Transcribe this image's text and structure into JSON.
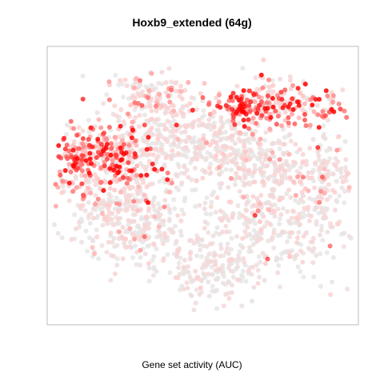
{
  "chart_data": {
    "type": "scatter",
    "title": "Hoxb9_extended (64g)",
    "legend_label": "Gene set activity (AUC)",
    "xlabel": "",
    "ylabel": "",
    "axes_visible": false,
    "grid": false,
    "xlim": [
      0,
      100
    ],
    "ylim": [
      0,
      100
    ],
    "color_scale": {
      "low": "#e6e6e6",
      "high": "#ff0000"
    },
    "clusters": [
      {
        "name": "top-center",
        "cx": 34,
        "cy": 81,
        "sx": 8,
        "sy": 5,
        "n": 160,
        "mean_activity": 0.3,
        "spread": 0.25
      },
      {
        "name": "top-right",
        "cx": 74,
        "cy": 80,
        "sx": 11,
        "sy": 5,
        "n": 230,
        "mean_activity": 0.55,
        "spread": 0.3
      },
      {
        "name": "top-right-hotspot",
        "cx": 62,
        "cy": 78,
        "sx": 2.5,
        "sy": 2,
        "n": 30,
        "mean_activity": 0.9,
        "spread": 0.1
      },
      {
        "name": "left-upper",
        "cx": 18,
        "cy": 60,
        "sx": 9,
        "sy": 7,
        "n": 330,
        "mean_activity": 0.62,
        "spread": 0.3
      },
      {
        "name": "left-hotspot",
        "cx": 8,
        "cy": 59,
        "sx": 2,
        "sy": 2,
        "n": 25,
        "mean_activity": 0.85,
        "spread": 0.1
      },
      {
        "name": "mid-center",
        "cx": 45,
        "cy": 66,
        "sx": 12,
        "sy": 6,
        "n": 250,
        "mean_activity": 0.18,
        "spread": 0.18
      },
      {
        "name": "right-center",
        "cx": 70,
        "cy": 58,
        "sx": 13,
        "sy": 7,
        "n": 300,
        "mean_activity": 0.22,
        "spread": 0.22
      },
      {
        "name": "lower-left",
        "cx": 26,
        "cy": 38,
        "sx": 10,
        "sy": 9,
        "n": 340,
        "mean_activity": 0.18,
        "spread": 0.22
      },
      {
        "name": "lower-right",
        "cx": 75,
        "cy": 36,
        "sx": 13,
        "sy": 10,
        "n": 330,
        "mean_activity": 0.15,
        "spread": 0.2
      },
      {
        "name": "bottom-center",
        "cx": 52,
        "cy": 20,
        "sx": 9,
        "sy": 7,
        "n": 180,
        "mean_activity": 0.1,
        "spread": 0.15
      },
      {
        "name": "far-right",
        "cx": 92,
        "cy": 56,
        "sx": 3,
        "sy": 4,
        "n": 40,
        "mean_activity": 0.2,
        "spread": 0.15
      }
    ]
  }
}
